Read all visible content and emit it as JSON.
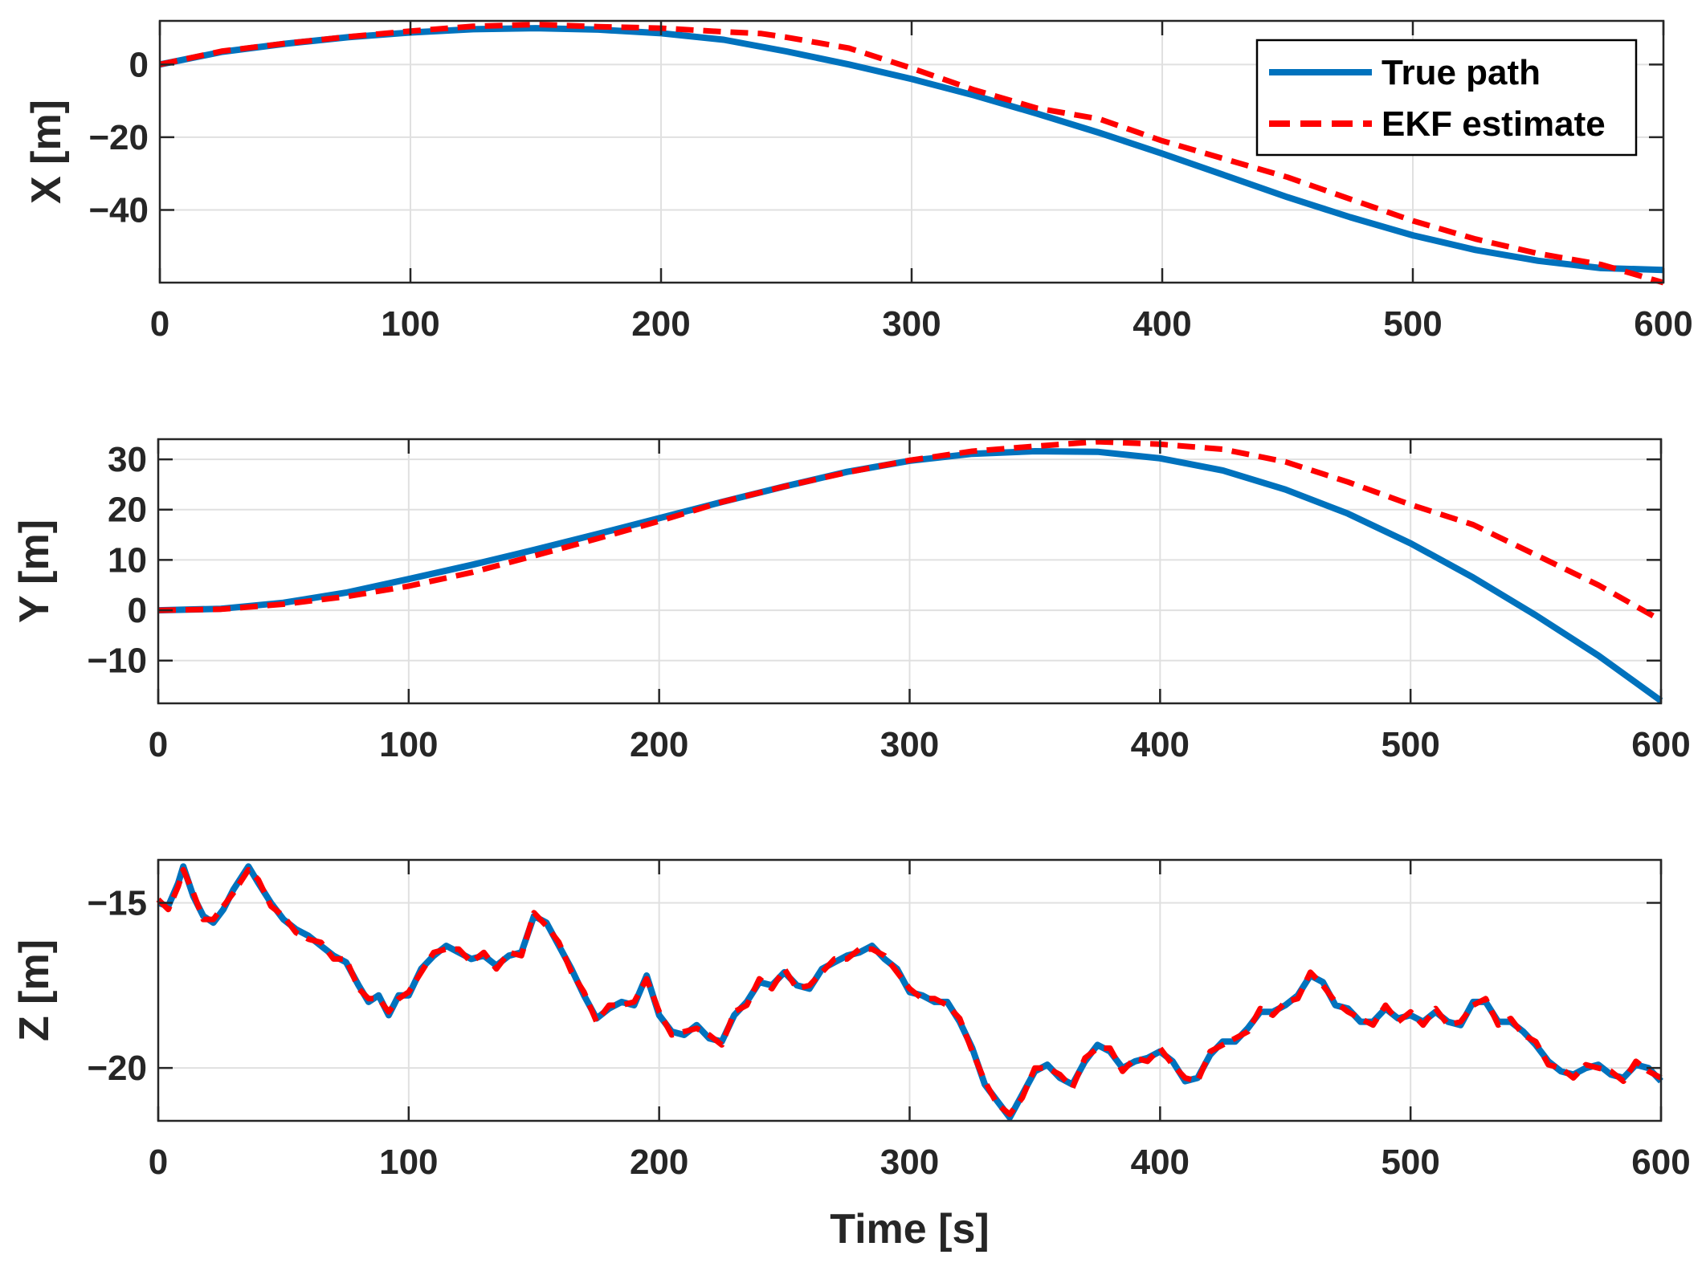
{
  "colors": {
    "true_path": "#0072BD",
    "ekf_estimate": "#FF0000",
    "grid": "#E0E0E0",
    "axis": "#262626"
  },
  "legend": {
    "entries": [
      "True path",
      "EKF estimate"
    ],
    "location": "top-right of first subplot"
  },
  "chart_data": [
    {
      "type": "line",
      "title": "",
      "xlabel": "",
      "ylabel": "X [m]",
      "xlim": [
        0,
        600
      ],
      "ylim": [
        -60,
        12
      ],
      "xticks": [
        0,
        100,
        200,
        300,
        400,
        500,
        600
      ],
      "xtick_labels": [
        "0",
        "100",
        "200",
        "300",
        "400",
        "500",
        "600"
      ],
      "yticks": [
        0,
        -20,
        -40
      ],
      "ytick_labels": [
        "0",
        "−20",
        "−40"
      ],
      "grid": true,
      "series": [
        {
          "name": "True path",
          "style": "solid",
          "x": [
            0,
            25,
            50,
            75,
            100,
            125,
            150,
            175,
            200,
            225,
            250,
            275,
            300,
            325,
            350,
            375,
            400,
            425,
            450,
            475,
            500,
            525,
            550,
            575,
            600
          ],
          "y": [
            0,
            3.5,
            5.7,
            7.5,
            8.8,
            9.7,
            10,
            9.6,
            8.6,
            6.8,
            3.6,
            0,
            -4,
            -8.5,
            -13.5,
            -18.8,
            -24.5,
            -30.5,
            -36.5,
            -42,
            -47,
            -51,
            -54,
            -56,
            -56.5
          ]
        },
        {
          "name": "EKF estimate",
          "style": "dashed",
          "x": [
            0,
            25,
            50,
            75,
            100,
            125,
            150,
            175,
            200,
            225,
            240,
            250,
            275,
            300,
            325,
            350,
            375,
            400,
            425,
            450,
            475,
            500,
            525,
            550,
            575,
            600
          ],
          "y": [
            0,
            3.7,
            5.8,
            7.6,
            9.2,
            10.5,
            11,
            10.4,
            10,
            9,
            8.5,
            7.5,
            4.5,
            -1,
            -7,
            -12,
            -15,
            -21,
            -26,
            -31,
            -37,
            -43,
            -48,
            -52,
            -55,
            -60
          ]
        }
      ]
    },
    {
      "type": "line",
      "title": "",
      "xlabel": "",
      "ylabel": "Y [m]",
      "xlim": [
        0,
        600
      ],
      "ylim": [
        -18.5,
        34
      ],
      "xticks": [
        0,
        100,
        200,
        300,
        400,
        500,
        600
      ],
      "xtick_labels": [
        "0",
        "100",
        "200",
        "300",
        "400",
        "500",
        "600"
      ],
      "yticks": [
        30,
        20,
        10,
        0,
        -10
      ],
      "ytick_labels": [
        "30",
        "20",
        "10",
        "0",
        "−10"
      ],
      "grid": true,
      "series": [
        {
          "name": "True path",
          "style": "solid",
          "x": [
            0,
            25,
            50,
            75,
            100,
            125,
            150,
            175,
            200,
            225,
            250,
            275,
            300,
            325,
            350,
            375,
            400,
            425,
            450,
            475,
            500,
            525,
            550,
            575,
            600
          ],
          "y": [
            0,
            0.3,
            1.5,
            3.5,
            6.2,
            9,
            12,
            15.1,
            18.3,
            21.5,
            24.6,
            27.5,
            29.7,
            31.1,
            31.6,
            31.5,
            30.2,
            27.8,
            24,
            19.2,
            13.3,
            6.5,
            -1,
            -9,
            -18
          ]
        },
        {
          "name": "EKF estimate",
          "style": "dashed",
          "x": [
            0,
            25,
            50,
            75,
            100,
            125,
            150,
            175,
            200,
            225,
            250,
            275,
            300,
            325,
            350,
            375,
            400,
            425,
            450,
            475,
            500,
            525,
            550,
            575,
            600
          ],
          "y": [
            0,
            0.2,
            1.2,
            2.7,
            4.8,
            7.5,
            10.8,
            14.2,
            17.7,
            21.5,
            24.6,
            27.4,
            29.8,
            31.6,
            32.6,
            33.5,
            33,
            32,
            29.5,
            25.5,
            21,
            17,
            11,
            5,
            -2
          ]
        }
      ]
    },
    {
      "type": "line",
      "title": "",
      "xlabel": "Time [s]",
      "ylabel": "Z [m]",
      "xlim": [
        0,
        600
      ],
      "ylim": [
        -21.6,
        -13.7
      ],
      "xticks": [
        0,
        100,
        200,
        300,
        400,
        500,
        600
      ],
      "xtick_labels": [
        "0",
        "100",
        "200",
        "300",
        "400",
        "500",
        "600"
      ],
      "yticks": [
        -15,
        -20
      ],
      "ytick_labels": [
        "−15",
        "−20"
      ],
      "grid": true,
      "series": [
        {
          "name": "True path",
          "style": "solid",
          "x": [
            0,
            4,
            8,
            10,
            14,
            18,
            22,
            26,
            30,
            36,
            40,
            45,
            50,
            55,
            60,
            65,
            70,
            75,
            80,
            84,
            88,
            92,
            96,
            100,
            105,
            110,
            115,
            120,
            125,
            130,
            135,
            140,
            145,
            150,
            155,
            160,
            165,
            170,
            175,
            180,
            185,
            190,
            195,
            200,
            205,
            210,
            215,
            220,
            225,
            230,
            235,
            240,
            245,
            250,
            255,
            260,
            265,
            270,
            275,
            280,
            285,
            290,
            295,
            300,
            305,
            310,
            315,
            320,
            325,
            330,
            335,
            340,
            345,
            350,
            355,
            360,
            365,
            370,
            375,
            380,
            385,
            390,
            395,
            400,
            405,
            410,
            415,
            420,
            425,
            430,
            435,
            440,
            445,
            450,
            455,
            460,
            465,
            470,
            475,
            480,
            485,
            490,
            495,
            500,
            505,
            510,
            515,
            520,
            525,
            530,
            535,
            540,
            545,
            550,
            555,
            560,
            565,
            570,
            575,
            580,
            585,
            590,
            595,
            600
          ],
          "y": [
            -15,
            -15.1,
            -14.4,
            -13.9,
            -14.8,
            -15.4,
            -15.6,
            -15.2,
            -14.6,
            -13.9,
            -14.4,
            -15,
            -15.5,
            -15.8,
            -16,
            -16.3,
            -16.6,
            -16.8,
            -17.5,
            -18,
            -17.8,
            -18.4,
            -17.8,
            -17.8,
            -17,
            -16.6,
            -16.3,
            -16.5,
            -16.7,
            -16.6,
            -16.9,
            -16.6,
            -16.5,
            -15.4,
            -15.6,
            -16.3,
            -17,
            -17.8,
            -18.5,
            -18.2,
            -18,
            -18.1,
            -17.2,
            -18.4,
            -18.9,
            -19,
            -18.7,
            -19.1,
            -19.2,
            -18.4,
            -18,
            -17.4,
            -17.5,
            -17.1,
            -17.5,
            -17.6,
            -17,
            -16.8,
            -16.6,
            -16.5,
            -16.3,
            -16.7,
            -17,
            -17.7,
            -17.8,
            -18,
            -18,
            -18.6,
            -19.4,
            -20.5,
            -21,
            -21.5,
            -20.8,
            -20.1,
            -19.9,
            -20.3,
            -20.5,
            -19.8,
            -19.3,
            -19.5,
            -20,
            -19.8,
            -19.7,
            -19.5,
            -19.8,
            -20.4,
            -20.3,
            -19.6,
            -19.2,
            -19.2,
            -18.8,
            -18.3,
            -18.3,
            -18.1,
            -17.8,
            -17.2,
            -17.4,
            -18.1,
            -18.2,
            -18.6,
            -18.6,
            -18.2,
            -18.5,
            -18.4,
            -18.6,
            -18.3,
            -18.6,
            -18.7,
            -18,
            -18,
            -18.6,
            -18.6,
            -18.9,
            -19.3,
            -19.8,
            -20.1,
            -20.2,
            -20,
            -19.9,
            -20.2,
            -20.3,
            -19.9,
            -20,
            -20.4
          ]
        },
        {
          "name": "EKF estimate",
          "style": "dashed",
          "x": [
            0,
            4,
            8,
            10,
            14,
            18,
            22,
            26,
            30,
            36,
            40,
            45,
            50,
            55,
            60,
            65,
            70,
            75,
            80,
            84,
            88,
            92,
            96,
            100,
            105,
            110,
            115,
            120,
            125,
            130,
            135,
            140,
            145,
            150,
            155,
            160,
            165,
            170,
            175,
            180,
            185,
            190,
            195,
            200,
            205,
            210,
            215,
            220,
            225,
            230,
            235,
            240,
            245,
            250,
            255,
            260,
            265,
            270,
            275,
            280,
            285,
            290,
            295,
            300,
            305,
            310,
            315,
            320,
            325,
            330,
            335,
            340,
            345,
            350,
            355,
            360,
            365,
            370,
            375,
            380,
            385,
            390,
            395,
            400,
            405,
            410,
            415,
            420,
            425,
            430,
            435,
            440,
            445,
            450,
            455,
            460,
            465,
            470,
            475,
            480,
            485,
            490,
            495,
            500,
            505,
            510,
            515,
            520,
            525,
            530,
            535,
            540,
            545,
            550,
            555,
            560,
            565,
            570,
            575,
            580,
            585,
            590,
            595,
            600
          ],
          "y": [
            -14.9,
            -15.2,
            -14.5,
            -14,
            -14.7,
            -15.5,
            -15.5,
            -15.1,
            -14.7,
            -14,
            -14.3,
            -15.1,
            -15.4,
            -15.9,
            -16.1,
            -16.2,
            -16.7,
            -16.7,
            -17.6,
            -17.9,
            -17.9,
            -18.3,
            -17.9,
            -17.7,
            -17.1,
            -16.5,
            -16.4,
            -16.4,
            -16.8,
            -16.5,
            -17,
            -16.5,
            -16.6,
            -15.3,
            -15.7,
            -16.2,
            -17.1,
            -17.7,
            -18.6,
            -18.1,
            -18.1,
            -18,
            -17.3,
            -18.3,
            -19,
            -18.9,
            -18.8,
            -19,
            -19.3,
            -18.3,
            -18.1,
            -17.3,
            -17.6,
            -17,
            -17.6,
            -17.5,
            -17.1,
            -16.7,
            -16.7,
            -16.4,
            -16.4,
            -16.6,
            -17.1,
            -17.6,
            -17.9,
            -17.9,
            -18.1,
            -18.5,
            -19.5,
            -20.4,
            -21.1,
            -21.4,
            -20.9,
            -20,
            -20,
            -20.2,
            -20.6,
            -19.7,
            -19.4,
            -19.4,
            -20.1,
            -19.7,
            -19.8,
            -19.4,
            -19.9,
            -20.3,
            -20.4,
            -19.5,
            -19.3,
            -19.1,
            -18.9,
            -18.2,
            -18.4,
            -18,
            -17.9,
            -17.1,
            -17.5,
            -18,
            -18.3,
            -18.5,
            -18.7,
            -18.1,
            -18.6,
            -18.3,
            -18.7,
            -18.2,
            -18.7,
            -18.6,
            -18.1,
            -17.9,
            -18.7,
            -18.5,
            -19,
            -19.2,
            -19.9,
            -20,
            -20.3,
            -19.9,
            -20,
            -20.1,
            -20.4,
            -19.8,
            -20.1,
            -20.3
          ]
        }
      ]
    }
  ]
}
